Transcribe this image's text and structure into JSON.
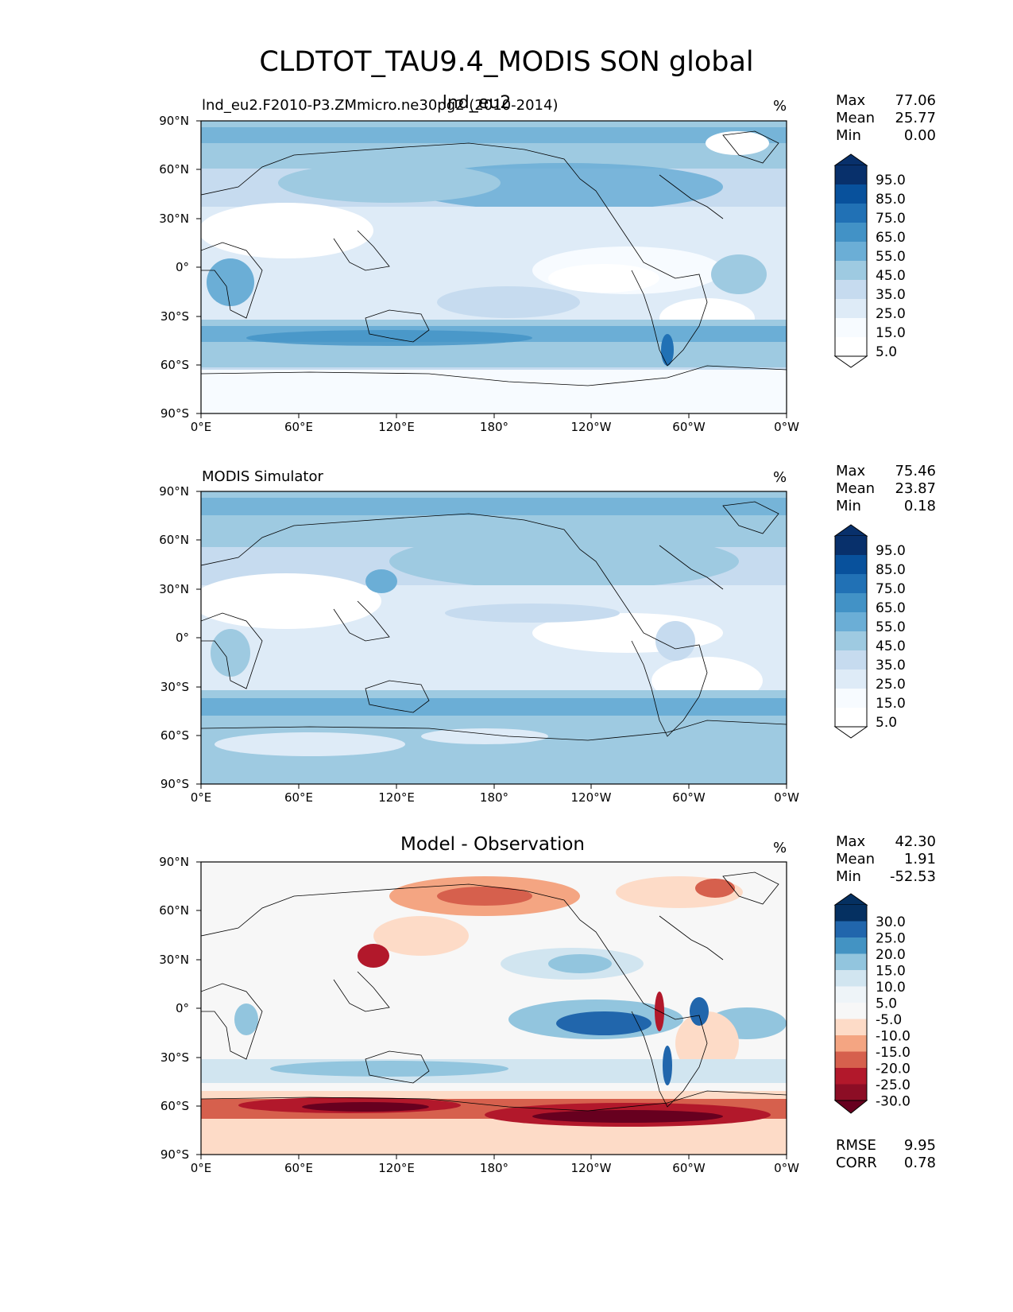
{
  "title": "CLDTOT_TAU9.4_MODIS SON global",
  "panels": [
    {
      "left_label": "lnd_eu2.F2010-P3.ZMmicro.ne30pg2 (2010-2014)",
      "center_title": "lnd_eu2",
      "units": "%",
      "stats": {
        "max_label": "Max",
        "max": "77.06",
        "mean_label": "Mean",
        "mean": "25.77",
        "min_label": "Min",
        "min": "0.00"
      },
      "colorbar": {
        "labels": [
          "95.0",
          "85.0",
          "75.0",
          "65.0",
          "55.0",
          "45.0",
          "35.0",
          "25.0",
          "15.0",
          "5.0"
        ],
        "colors": [
          "#08306b",
          "#08519c",
          "#2171b5",
          "#4292c6",
          "#6baed6",
          "#9ecae1",
          "#c6dbef",
          "#deebf7",
          "#f7fbff",
          "#ffffff"
        ]
      }
    },
    {
      "left_label": "MODIS Simulator",
      "center_title": "",
      "units": "%",
      "stats": {
        "max_label": "Max",
        "max": "75.46",
        "mean_label": "Mean",
        "mean": "23.87",
        "min_label": "Min",
        "min": "0.18"
      },
      "colorbar": {
        "labels": [
          "95.0",
          "85.0",
          "75.0",
          "65.0",
          "55.0",
          "45.0",
          "35.0",
          "25.0",
          "15.0",
          "5.0"
        ],
        "colors": [
          "#08306b",
          "#08519c",
          "#2171b5",
          "#4292c6",
          "#6baed6",
          "#9ecae1",
          "#c6dbef",
          "#deebf7",
          "#f7fbff",
          "#ffffff"
        ]
      }
    },
    {
      "left_label": "",
      "center_title": "Model - Observation",
      "units": "%",
      "stats": {
        "max_label": "Max",
        "max": "42.30",
        "mean_label": "Mean",
        "mean": "1.91",
        "min_label": "Min",
        "min": "-52.53"
      },
      "extra_stats": {
        "rmse_label": "RMSE",
        "rmse": "9.95",
        "corr_label": "CORR",
        "corr": "0.78"
      },
      "colorbar": {
        "labels": [
          "30.0",
          "25.0",
          "20.0",
          "15.0",
          "10.0",
          "5.0",
          "-5.0",
          "-10.0",
          "-15.0",
          "-20.0",
          "-25.0",
          "-30.0"
        ],
        "colors": [
          "#053061",
          "#2166ac",
          "#4393c3",
          "#92c5de",
          "#d1e5f0",
          "#eef4f8",
          "#f7f7f7",
          "#fddbc7",
          "#f4a582",
          "#d6604d",
          "#b2182b",
          "#8c0d25",
          "#67001f"
        ]
      }
    }
  ],
  "axes": {
    "y_ticks": [
      "90°N",
      "60°N",
      "30°N",
      "0°",
      "30°S",
      "60°S",
      "90°S"
    ],
    "x_ticks": [
      "0°E",
      "60°E",
      "120°E",
      "180°",
      "120°W",
      "60°W",
      "0°W"
    ]
  },
  "colors": {
    "diff_positive": "#2166ac",
    "diff_negative": "#b2182b",
    "land_outline": "#000000"
  }
}
